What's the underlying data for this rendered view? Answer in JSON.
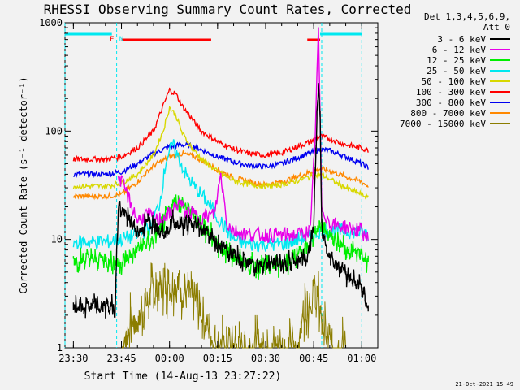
{
  "chart_data": {
    "type": "line",
    "title": "RHESSI Observing Summary Count Rates, Corrected",
    "xlabel": "Start Time (14-Aug-13 23:27:22)",
    "ylabel": "Corrected Count Rate (s⁻¹ detector⁻¹)",
    "y_scale": "log",
    "ylim": [
      1,
      1000
    ],
    "xlim": [
      "23:27:22",
      "01:05:00"
    ],
    "xticks": [
      {
        "label": "23:30",
        "min": -30
      },
      {
        "label": "23:45",
        "min": -15
      },
      {
        "label": "00:00",
        "min": 0
      },
      {
        "label": "00:15",
        "min": 15
      },
      {
        "label": "00:30",
        "min": 30
      },
      {
        "label": "00:45",
        "min": 45
      },
      {
        "label": "01:00",
        "min": 60
      }
    ],
    "yticks": [
      {
        "label": "1",
        "v": 1
      },
      {
        "label": "10",
        "v": 10
      },
      {
        "label": "100",
        "v": 100
      },
      {
        "label": "1000",
        "v": 1000
      }
    ],
    "legend_header": [
      "Det 1,3,4,5,6,9,",
      "Att 0"
    ],
    "legend_position": "right",
    "time_unit": "minutes from 00:00",
    "series": [
      {
        "name": "3 - 6 keV",
        "color": "#000000",
        "points": [
          [
            -30,
            2.4
          ],
          [
            -17,
            2.4
          ],
          [
            -16,
            20
          ],
          [
            -10,
            12
          ],
          [
            -5,
            15
          ],
          [
            -1,
            12
          ],
          [
            1,
            15
          ],
          [
            4,
            14
          ],
          [
            10,
            13
          ],
          [
            15,
            9
          ],
          [
            18,
            8
          ],
          [
            20,
            7
          ],
          [
            25,
            6
          ],
          [
            30,
            6
          ],
          [
            35,
            6
          ],
          [
            40,
            6.5
          ],
          [
            43,
            7
          ],
          [
            45,
            14
          ],
          [
            46,
            120
          ],
          [
            46.5,
            300
          ],
          [
            47,
            120
          ],
          [
            47.5,
            12
          ],
          [
            50,
            7
          ],
          [
            55,
            5
          ],
          [
            60,
            3.5
          ],
          [
            62,
            2.5
          ]
        ]
      },
      {
        "name": "6 - 12 keV",
        "color": "#e800e8",
        "points": [
          [
            -16,
            40
          ],
          [
            -13,
            25
          ],
          [
            -10,
            15
          ],
          [
            -7,
            17
          ],
          [
            -4,
            15
          ],
          [
            0,
            17
          ],
          [
            3,
            22
          ],
          [
            5,
            18
          ],
          [
            10,
            16
          ],
          [
            14,
            17
          ],
          [
            16,
            40
          ],
          [
            18,
            14
          ],
          [
            20,
            12
          ],
          [
            25,
            11
          ],
          [
            30,
            11
          ],
          [
            35,
            11
          ],
          [
            40,
            11
          ],
          [
            44,
            12
          ],
          [
            45.5,
            100
          ],
          [
            46.5,
            900
          ],
          [
            47.5,
            20
          ],
          [
            50,
            14
          ],
          [
            55,
            13
          ],
          [
            60,
            12
          ],
          [
            62,
            10
          ]
        ]
      },
      {
        "name": "12 - 25 keV",
        "color": "#00ee00",
        "points": [
          [
            -30,
            6.5
          ],
          [
            -20,
            6.5
          ],
          [
            -15,
            6
          ],
          [
            -10,
            8
          ],
          [
            -5,
            10
          ],
          [
            -1,
            16
          ],
          [
            2,
            23
          ],
          [
            5,
            20
          ],
          [
            10,
            14
          ],
          [
            15,
            9
          ],
          [
            20,
            7
          ],
          [
            25,
            6
          ],
          [
            30,
            5.5
          ],
          [
            35,
            6
          ],
          [
            40,
            7
          ],
          [
            44,
            9
          ],
          [
            45.5,
            12
          ],
          [
            47,
            14
          ],
          [
            50,
            11
          ],
          [
            55,
            8
          ],
          [
            60,
            7
          ],
          [
            62,
            6.5
          ]
        ]
      },
      {
        "name": "25 - 50 keV",
        "color": "#00e8f0",
        "points": [
          [
            -30,
            9.5
          ],
          [
            -20,
            9.5
          ],
          [
            -15,
            10
          ],
          [
            -10,
            11
          ],
          [
            -6,
            13
          ],
          [
            -3,
            22
          ],
          [
            -1,
            55
          ],
          [
            1,
            75
          ],
          [
            3,
            55
          ],
          [
            5,
            40
          ],
          [
            8,
            30
          ],
          [
            12,
            22
          ],
          [
            15,
            16
          ],
          [
            18,
            12
          ],
          [
            20,
            10
          ],
          [
            25,
            9
          ],
          [
            30,
            9
          ],
          [
            35,
            9
          ],
          [
            40,
            10
          ],
          [
            44,
            10.5
          ],
          [
            47,
            12
          ],
          [
            50,
            12
          ],
          [
            55,
            12
          ],
          [
            60,
            11.5
          ],
          [
            62,
            11
          ]
        ]
      },
      {
        "name": "50 - 100 keV",
        "color": "#d8d800",
        "points": [
          [
            -30,
            31
          ],
          [
            -20,
            31
          ],
          [
            -15,
            33
          ],
          [
            -10,
            40
          ],
          [
            -5,
            60
          ],
          [
            -2,
            100
          ],
          [
            0,
            165
          ],
          [
            2,
            140
          ],
          [
            4,
            95
          ],
          [
            7,
            70
          ],
          [
            10,
            55
          ],
          [
            15,
            42
          ],
          [
            20,
            35
          ],
          [
            25,
            32
          ],
          [
            30,
            31
          ],
          [
            35,
            32
          ],
          [
            40,
            35
          ],
          [
            44,
            38
          ],
          [
            47,
            40
          ],
          [
            50,
            36
          ],
          [
            55,
            30
          ],
          [
            60,
            26
          ],
          [
            62,
            24
          ]
        ]
      },
      {
        "name": "100 - 300 keV",
        "color": "#ff0000",
        "points": [
          [
            -30,
            55
          ],
          [
            -20,
            55
          ],
          [
            -15,
            58
          ],
          [
            -10,
            70
          ],
          [
            -5,
            100
          ],
          [
            -2,
            170
          ],
          [
            0,
            240
          ],
          [
            2,
            220
          ],
          [
            4,
            170
          ],
          [
            7,
            130
          ],
          [
            10,
            100
          ],
          [
            15,
            80
          ],
          [
            20,
            68
          ],
          [
            25,
            62
          ],
          [
            30,
            60
          ],
          [
            35,
            63
          ],
          [
            40,
            72
          ],
          [
            44,
            80
          ],
          [
            47,
            90
          ],
          [
            50,
            85
          ],
          [
            55,
            75
          ],
          [
            60,
            70
          ],
          [
            62,
            66
          ]
        ]
      },
      {
        "name": "300 - 800 keV",
        "color": "#0000f0",
        "points": [
          [
            -30,
            40
          ],
          [
            -20,
            40
          ],
          [
            -15,
            42
          ],
          [
            -10,
            50
          ],
          [
            -5,
            62
          ],
          [
            0,
            72
          ],
          [
            4,
            75
          ],
          [
            8,
            72
          ],
          [
            12,
            63
          ],
          [
            15,
            58
          ],
          [
            20,
            52
          ],
          [
            25,
            48
          ],
          [
            30,
            47
          ],
          [
            35,
            50
          ],
          [
            40,
            57
          ],
          [
            44,
            63
          ],
          [
            47,
            68
          ],
          [
            50,
            66
          ],
          [
            55,
            58
          ],
          [
            60,
            50
          ],
          [
            62,
            46
          ]
        ]
      },
      {
        "name": "800 - 7000 keV",
        "color": "#ff8800",
        "points": [
          [
            -30,
            25
          ],
          [
            -20,
            25
          ],
          [
            -15,
            26
          ],
          [
            -10,
            34
          ],
          [
            -5,
            48
          ],
          [
            0,
            58
          ],
          [
            4,
            62
          ],
          [
            8,
            58
          ],
          [
            12,
            50
          ],
          [
            15,
            44
          ],
          [
            20,
            37
          ],
          [
            25,
            34
          ],
          [
            30,
            32
          ],
          [
            35,
            34
          ],
          [
            40,
            38
          ],
          [
            44,
            42
          ],
          [
            47,
            45
          ],
          [
            50,
            43
          ],
          [
            55,
            38
          ],
          [
            60,
            34
          ],
          [
            62,
            31
          ]
        ]
      },
      {
        "name": "7000 - 15000 keV",
        "color": "#8b7d00",
        "points": [
          [
            -15,
            1
          ],
          [
            -12,
            1.6
          ],
          [
            -8,
            2.3
          ],
          [
            -6,
            3
          ],
          [
            -3,
            3.9
          ],
          [
            0,
            3.9
          ],
          [
            3,
            3.9
          ],
          [
            6,
            3
          ],
          [
            10,
            2.2
          ],
          [
            13,
            1.3
          ],
          [
            16,
            1
          ],
          [
            40,
            1
          ],
          [
            42,
            2.3
          ],
          [
            44,
            3
          ],
          [
            46,
            3
          ],
          [
            48,
            1.5
          ],
          [
            50,
            1
          ],
          [
            55,
            1
          ]
        ]
      }
    ],
    "flag_bars": [
      {
        "color": "#00e8f0",
        "from": -33,
        "to": -18
      },
      {
        "color": "#ff0000",
        "from": -15,
        "to": 13
      },
      {
        "color": "#ff0000",
        "from": 43,
        "to": 47
      },
      {
        "color": "#00e8f0",
        "from": 47,
        "to": 60
      }
    ],
    "flag_labels": [
      {
        "text": "F",
        "color": "#ff0000",
        "at": -18
      },
      {
        "text": "N",
        "color": "#00e8f0",
        "at": -15
      }
    ],
    "vlines": [
      {
        "color": "#00e8f0",
        "at": -33
      },
      {
        "color": "#00e8f0",
        "at": -16.5
      },
      {
        "color": "#00e8f0",
        "at": 47.5
      },
      {
        "color": "#00e8f0",
        "at": 60
      }
    ],
    "footer_date": "21-Oct-2021 15:49"
  }
}
